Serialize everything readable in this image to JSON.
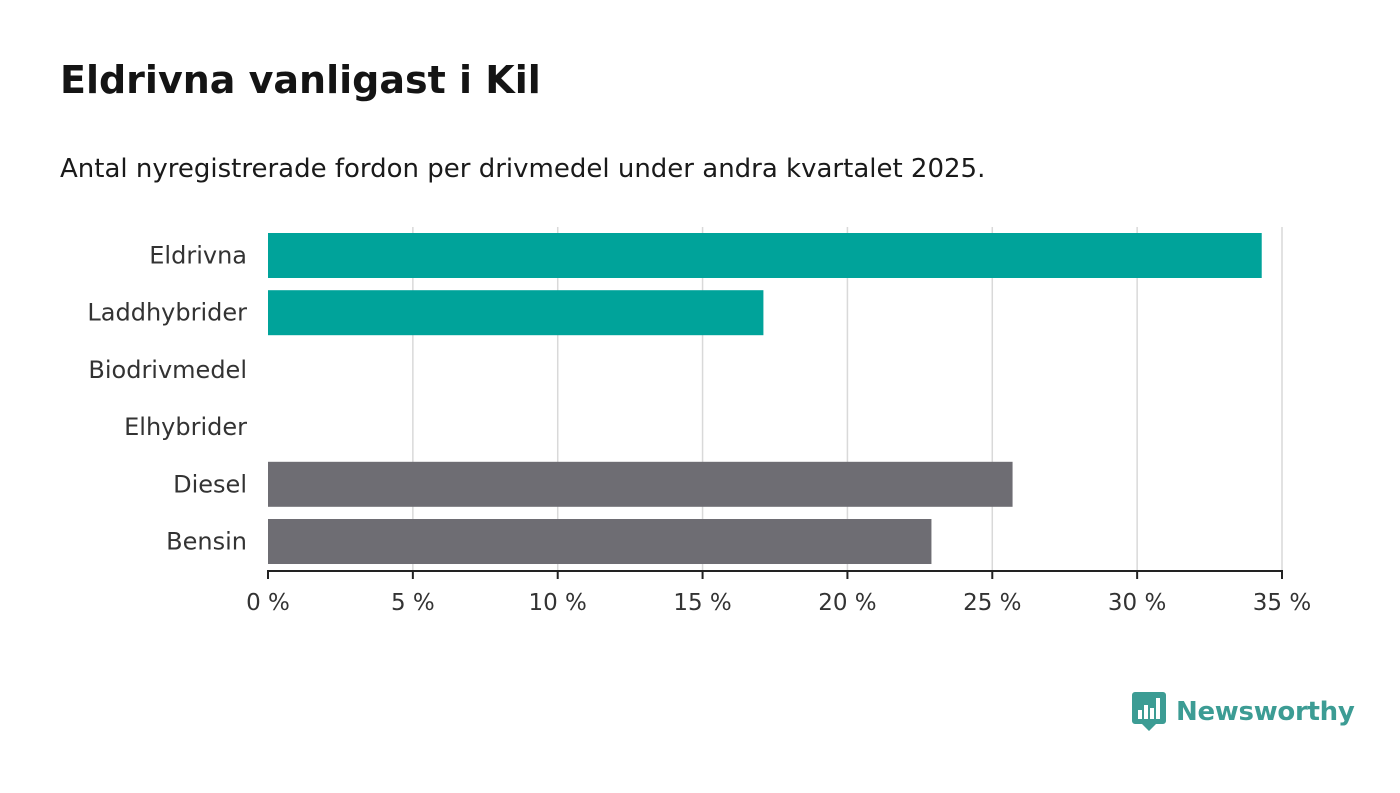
{
  "chart_data": {
    "type": "bar",
    "orientation": "horizontal",
    "title": "Eldrivna vanligast i Kil",
    "subtitle": "Antal nyregistrerade fordon per drivmedel under andra kvartalet 2025.",
    "categories": [
      "Eldrivna",
      "Laddhybrider",
      "Biodrivmedel",
      "Elhybrider",
      "Diesel",
      "Bensin"
    ],
    "values": [
      34.3,
      17.1,
      0,
      0,
      25.7,
      22.9
    ],
    "bar_colors": [
      "#00a39a",
      "#00a39a",
      "#00a39a",
      "#00a39a",
      "#6e6d73",
      "#6e6d73"
    ],
    "xlim": [
      0,
      35
    ],
    "x_ticks": [
      0,
      5,
      10,
      15,
      20,
      25,
      30,
      35
    ],
    "x_tick_labels": [
      "0 %",
      "5 %",
      "10 %",
      "15 %",
      "20 %",
      "25 %",
      "30 %",
      "35 %"
    ],
    "xlabel": "",
    "ylabel": "",
    "grid": true
  },
  "brand": {
    "name": "Newsworthy",
    "icon": "newsworthy-logo-icon",
    "color": "#3c9c94"
  }
}
